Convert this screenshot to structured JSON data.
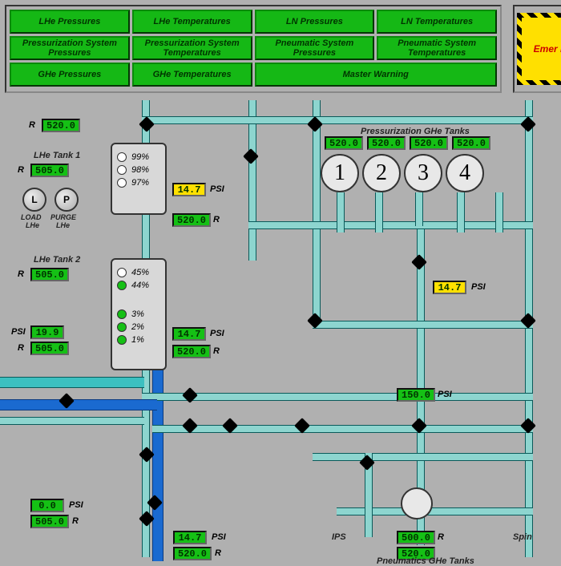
{
  "colors": {
    "green_btn": "#15b815",
    "green_disp": "#15c015",
    "yellow_disp": "#ffe000",
    "bg": "#b0b0b0",
    "teal": "#8dd5cf",
    "cyan": "#3cc0c0",
    "blue": "#1a6ad0"
  },
  "menu": {
    "r1": [
      "LHe Pressures",
      "LHe Temperatures",
      "LN Pressures",
      "LN Temperatures"
    ],
    "r2": [
      "Pressurization System Pressures",
      "Pressurization System Temperatures",
      "Pneumatic System Pressures",
      "Pneumatic System Temperatures"
    ],
    "r3": [
      "GHe Pressures",
      "GHe Temperatures",
      "Master Warning"
    ]
  },
  "emergency": "Emer\nPu",
  "labels": {
    "lhe1": "LHe Tank 1",
    "lhe2": "LHe Tank 2",
    "load": "LOAD",
    "purge": "PURGE",
    "lhe_small": "LHe",
    "ghe_tanks": "Pressurization GHe Tanks",
    "pneu": "Pneumatics GHe Tanks",
    "ips": "IPS",
    "spin": "Spin",
    "l": "L",
    "p": "P"
  },
  "units": {
    "psi": "PSI",
    "r": "R"
  },
  "tank1_pct": [
    "99%",
    "98%",
    "97%"
  ],
  "tank1_colors": [
    "#ffffff",
    "#ffffff",
    "#ffffff"
  ],
  "tank2_pct_top": [
    "45%",
    "44%"
  ],
  "tank2_colors_top": [
    "#ffffff",
    "#15c015"
  ],
  "tank2_pct_bot": [
    "3%",
    "2%",
    "1%"
  ],
  "tank2_colors_bot": [
    "#15c015",
    "#15c015",
    "#15c015"
  ],
  "ghe_nums": [
    "1",
    "2",
    "3",
    "4"
  ],
  "readings": {
    "top_520": "520.0",
    "lhe1_505": "505.0",
    "t1_14_7": "14.7",
    "t1_520": "520.0",
    "ghe1": "520.0",
    "ghe2": "520.0",
    "ghe3": "520.0",
    "ghe4": "520.0",
    "ghe_psi": "14.7",
    "psi_19_9": "19.9",
    "r_505_a": "505.0",
    "t2_14_7": "14.7",
    "t2_520": "520.0",
    "mid_150": "150.0",
    "bl_0": "0.0",
    "bl_505": "505.0",
    "bl2_14_7": "14.7",
    "bl2_520": "520.0",
    "pneu_500": "500.0",
    "pneu_520": "520.0"
  }
}
